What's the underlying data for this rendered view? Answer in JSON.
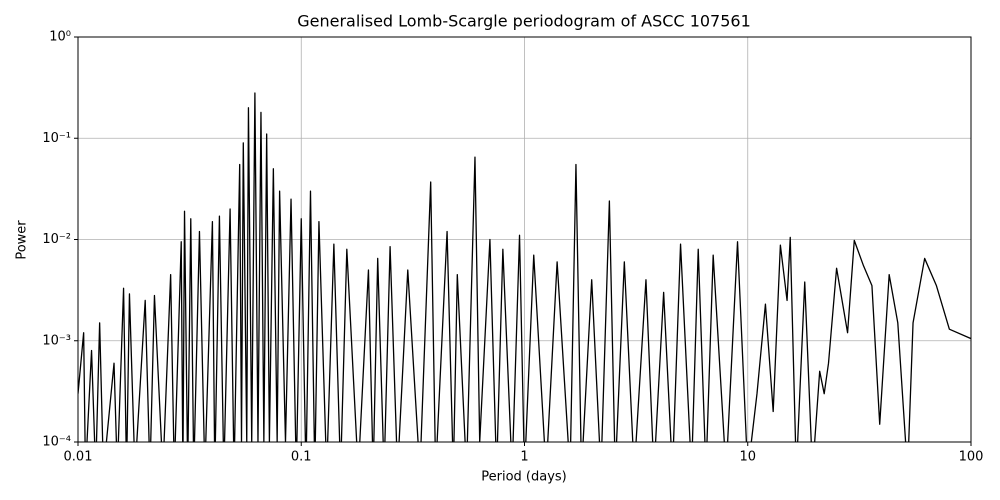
{
  "chart_data": {
    "type": "line",
    "title": "Generalised Lomb-Scargle periodogram of ASCC 107561",
    "x_label": "Period (days)",
    "y_label": "Power",
    "log_x": true,
    "log_y": true,
    "grid": true,
    "xlim": [
      0.01,
      100
    ],
    "ylim": [
      0.0001,
      1
    ],
    "xticks": [
      0.01,
      0.1,
      1,
      10,
      100
    ],
    "yticks": [
      {
        "value": 0.0001,
        "label": "10⁻⁴"
      },
      {
        "value": 0.001,
        "label": "10⁻³"
      },
      {
        "value": 0.01,
        "label": "10⁻²"
      },
      {
        "value": 0.1,
        "label": "10⁻¹"
      },
      {
        "value": 1,
        "label": "10⁰"
      }
    ],
    "series": [
      {
        "color": "#000000",
        "x": [
          0.01,
          0.0106,
          0.0108,
          0.0115,
          0.012,
          0.0125,
          0.013,
          0.0145,
          0.015,
          0.016,
          0.0165,
          0.017,
          0.018,
          0.02,
          0.021,
          0.022,
          0.024,
          0.026,
          0.027,
          0.029,
          0.0295,
          0.03,
          0.031,
          0.032,
          0.033,
          0.035,
          0.037,
          0.04,
          0.041,
          0.043,
          0.045,
          0.048,
          0.05,
          0.053,
          0.054,
          0.055,
          0.057,
          0.058,
          0.06,
          0.062,
          0.064,
          0.066,
          0.068,
          0.07,
          0.072,
          0.075,
          0.078,
          0.08,
          0.085,
          0.09,
          0.095,
          0.1,
          0.105,
          0.11,
          0.115,
          0.12,
          0.13,
          0.14,
          0.15,
          0.16,
          0.18,
          0.2,
          0.21,
          0.22,
          0.235,
          0.25,
          0.27,
          0.3,
          0.34,
          0.38,
          0.4,
          0.45,
          0.48,
          0.5,
          0.55,
          0.6,
          0.63,
          0.7,
          0.75,
          0.8,
          0.88,
          0.95,
          1.0,
          1.1,
          1.25,
          1.4,
          1.6,
          1.7,
          1.8,
          2,
          2.2,
          2.4,
          2.55,
          2.8,
          3.1,
          3.5,
          3.8,
          4.2,
          4.6,
          5,
          5.6,
          6,
          6.5,
          7,
          8,
          9,
          10,
          11,
          12,
          13,
          14,
          15,
          15.5,
          16.5,
          18,
          19.5,
          21,
          22,
          23,
          25,
          28,
          30,
          33,
          36,
          39,
          43,
          47,
          52,
          55,
          62,
          70,
          80,
          100
        ],
        "values": [
          0.0003,
          0.0012,
          5e-05,
          0.0008,
          5e-05,
          0.0015,
          5e-05,
          0.0006,
          5e-05,
          0.0033,
          5e-05,
          0.0029,
          5e-05,
          0.0025,
          5e-05,
          0.0028,
          5e-05,
          0.0045,
          5e-05,
          0.0095,
          5e-05,
          0.019,
          5e-05,
          0.016,
          5e-05,
          0.012,
          5e-05,
          0.015,
          5e-05,
          0.017,
          5e-05,
          0.02,
          5e-05,
          0.055,
          0.0001,
          0.09,
          0.0001,
          0.2,
          0.0001,
          0.28,
          0.0001,
          0.18,
          0.0001,
          0.11,
          0.0001,
          0.05,
          0.0001,
          0.03,
          0.0001,
          0.025,
          5e-05,
          0.016,
          5e-05,
          0.03,
          5e-05,
          0.015,
          5e-05,
          0.009,
          5e-05,
          0.008,
          5e-05,
          0.005,
          5e-05,
          0.0065,
          5e-05,
          0.0085,
          5e-05,
          0.005,
          5e-05,
          0.037,
          5e-05,
          0.012,
          5e-05,
          0.0045,
          5e-05,
          0.065,
          0.0001,
          0.01,
          5e-05,
          0.008,
          5e-05,
          0.011,
          5e-05,
          0.007,
          5e-05,
          0.006,
          5e-05,
          0.055,
          5e-05,
          0.004,
          5e-05,
          0.024,
          5e-05,
          0.006,
          5e-05,
          0.004,
          5e-05,
          0.003,
          5e-05,
          0.009,
          5e-05,
          0.008,
          5e-05,
          0.007,
          5e-05,
          0.0095,
          5e-05,
          0.0003,
          0.0023,
          0.0002,
          0.0088,
          0.0025,
          0.0105,
          5e-05,
          0.0038,
          5e-05,
          0.0005,
          0.0003,
          0.0006,
          0.0052,
          0.0012,
          0.0098,
          0.0055,
          0.0035,
          0.00015,
          0.0045,
          0.0015,
          5e-05,
          0.0015,
          0.0065,
          0.0035,
          0.0013,
          0.00105
        ]
      }
    ]
  }
}
